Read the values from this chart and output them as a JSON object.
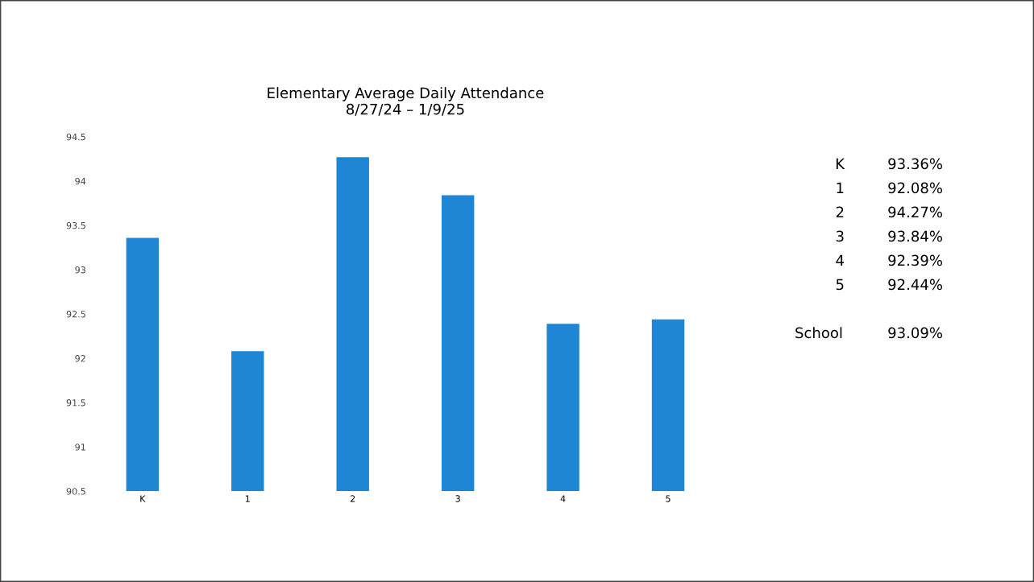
{
  "chart_data": {
    "type": "bar",
    "title": "Elementary Average Daily Attendance\n8/27/24 – 1/9/25",
    "categories": [
      "K",
      "1",
      "2",
      "3",
      "4",
      "5"
    ],
    "values": [
      93.36,
      92.08,
      94.27,
      93.84,
      92.39,
      92.44
    ],
    "color": "#1f86d6",
    "ylim": [
      90.5,
      94.5
    ],
    "yticks": [
      90.5,
      91,
      91.5,
      92,
      92.5,
      93,
      93.5,
      94,
      94.5
    ],
    "grid": false,
    "annotations": [
      "K 93.36%",
      "1 92.08%",
      "2 94.27%",
      "3 93.84%",
      "4 92.39%",
      "5 92.44%",
      "School 93.09%"
    ]
  }
}
